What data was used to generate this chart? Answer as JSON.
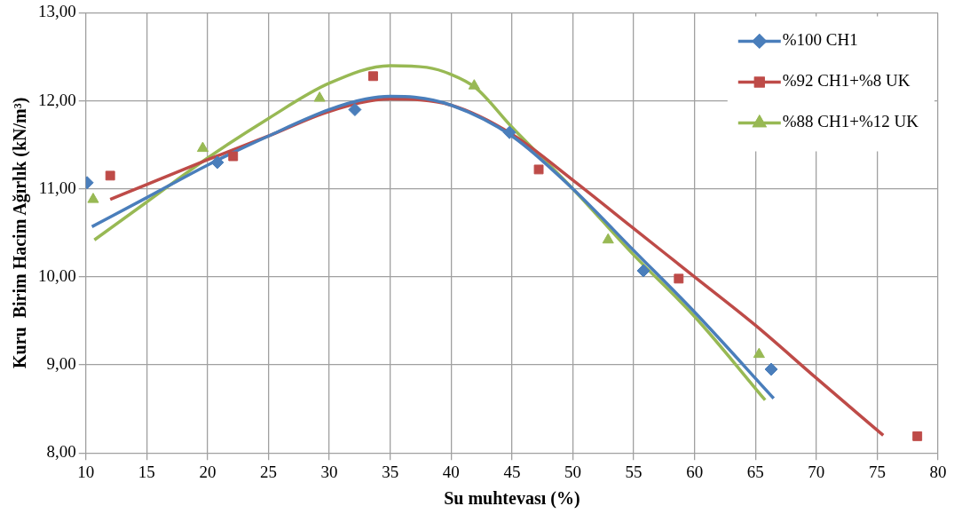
{
  "chart_data": {
    "type": "scatter",
    "xlabel": "Su muhtevası (%)",
    "ylabel": "Kuru  Birim Hacim Ağırlık (kN/m³)",
    "xlim": [
      10,
      80
    ],
    "xticks": [
      10,
      15,
      20,
      25,
      30,
      35,
      40,
      45,
      50,
      55,
      60,
      65,
      70,
      75,
      80
    ],
    "ylim": [
      8,
      13
    ],
    "yticks": [
      {
        "value": 8,
        "label": "8,00"
      },
      {
        "value": 9,
        "label": "9,00"
      },
      {
        "value": 10,
        "label": "10,00"
      },
      {
        "value": 11,
        "label": "11,00"
      },
      {
        "value": 12,
        "label": "12,00"
      },
      {
        "value": 13,
        "label": "13,00"
      }
    ],
    "grid": true,
    "legend": "top right",
    "series": [
      {
        "name": "%100 CH1",
        "type": "scatter",
        "marker": "diamond",
        "color": "#4a7ebb",
        "x": [
          10.1,
          20.8,
          32.1,
          44.8,
          55.8,
          66.3
        ],
        "values": [
          11.07,
          11.3,
          11.9,
          11.64,
          10.07,
          8.95
        ]
      },
      {
        "name": "%92 CH1+%8 UK",
        "type": "scatter",
        "marker": "square",
        "color": "#be4b48",
        "x": [
          12.0,
          22.1,
          33.6,
          47.2,
          58.7,
          78.3
        ],
        "values": [
          11.15,
          11.37,
          12.28,
          11.22,
          9.98,
          8.19
        ]
      },
      {
        "name": "%88 CH1+%12 UK",
        "type": "scatter",
        "marker": "triangle",
        "color": "#98b954",
        "x": [
          10.6,
          19.6,
          29.2,
          41.9,
          52.9,
          65.3
        ],
        "values": [
          10.88,
          11.46,
          12.03,
          12.17,
          10.42,
          9.12
        ]
      },
      {
        "type": "line",
        "marker": "none",
        "color": "#4a7ebb",
        "x": [
          10.5,
          15,
          20,
          25,
          30,
          33,
          35,
          37,
          40,
          45,
          50,
          55,
          60,
          66.5
        ],
        "values": [
          10.57,
          10.9,
          11.27,
          11.6,
          11.9,
          12.02,
          12.05,
          12.04,
          11.95,
          11.6,
          11.0,
          10.3,
          9.6,
          8.62
        ]
      },
      {
        "type": "line",
        "marker": "none",
        "color": "#be4b48",
        "x": [
          12,
          15,
          20,
          25,
          30,
          35,
          40,
          45,
          50,
          55,
          60,
          65,
          70,
          75.5
        ],
        "values": [
          10.88,
          11.05,
          11.33,
          11.6,
          11.88,
          12.02,
          11.95,
          11.62,
          11.1,
          10.55,
          10.0,
          9.45,
          8.85,
          8.2
        ]
      },
      {
        "type": "line",
        "marker": "none",
        "color": "#98b954",
        "x": [
          10.7,
          15,
          20,
          25,
          30,
          35,
          38,
          40,
          42,
          45,
          50,
          55,
          60,
          65.8
        ],
        "values": [
          10.42,
          10.85,
          11.35,
          11.8,
          12.2,
          12.4,
          12.38,
          12.3,
          12.15,
          11.7,
          11.0,
          10.25,
          9.55,
          8.6
        ]
      }
    ]
  }
}
